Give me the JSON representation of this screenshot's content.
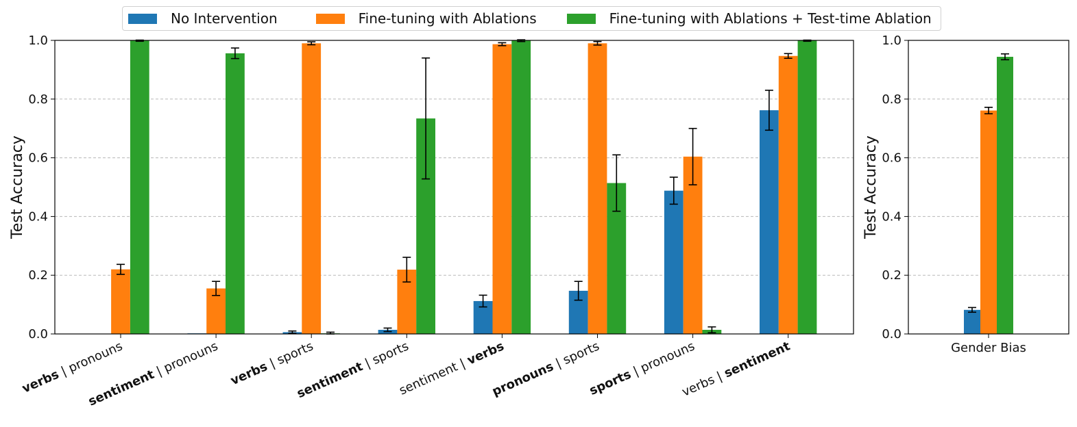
{
  "legend": {
    "items": [
      {
        "label": "No Intervention",
        "color": "#1f77b4"
      },
      {
        "label": "Fine-tuning with Ablations",
        "color": "#ff7f0e"
      },
      {
        "label": "Fine-tuning with Ablations + Test-time Ablation",
        "color": "#2ca02c"
      }
    ]
  },
  "chart_data": [
    {
      "type": "bar",
      "ylabel": "Test Accuracy",
      "ylim": [
        0,
        1.0
      ],
      "yticks": [
        "0.0",
        "0.2",
        "0.4",
        "0.6",
        "0.8",
        "1.0"
      ],
      "grid": "y-dashed",
      "categories": [
        {
          "bold": "verbs",
          "sep": " | ",
          "rest": "pronouns",
          "bold_first": true
        },
        {
          "bold": "sentiment",
          "sep": " | ",
          "rest": "pronouns",
          "bold_first": true
        },
        {
          "bold": "verbs",
          "sep": " | ",
          "rest": "sports",
          "bold_first": true
        },
        {
          "bold": "sentiment",
          "sep": " | ",
          "rest": "sports",
          "bold_first": true
        },
        {
          "bold": "verbs",
          "sep": " | ",
          "rest": "sentiment",
          "bold_first": false
        },
        {
          "bold": "pronouns",
          "sep": " | ",
          "rest": "sports",
          "bold_first": true
        },
        {
          "bold": "sports",
          "sep": " | ",
          "rest": "pronouns",
          "bold_first": true
        },
        {
          "bold": "sentiment",
          "sep": " | ",
          "rest": "verbs",
          "bold_first": false
        }
      ],
      "series": [
        {
          "name": "No Intervention",
          "values": [
            0.001,
            0.002,
            0.006,
            0.014,
            0.112,
            0.147,
            0.488,
            0.762
          ],
          "errors": [
            0.0,
            0.0,
            0.004,
            0.006,
            0.02,
            0.032,
            0.046,
            0.068
          ]
        },
        {
          "name": "Fine-tuning with Ablations",
          "values": [
            0.22,
            0.155,
            0.99,
            0.219,
            0.987,
            0.99,
            0.604,
            0.947
          ],
          "errors": [
            0.017,
            0.024,
            0.005,
            0.042,
            0.005,
            0.006,
            0.096,
            0.008
          ]
        },
        {
          "name": "Fine-tuning with Ablations + Test-time Ablation",
          "values": [
            0.999,
            0.956,
            0.002,
            0.734,
            0.999,
            0.514,
            0.014,
            0.999
          ],
          "errors": [
            0.002,
            0.018,
            0.004,
            0.206,
            0.003,
            0.096,
            0.01,
            0.002
          ]
        }
      ]
    },
    {
      "type": "bar",
      "ylabel": "Test Accuracy",
      "ylim": [
        0,
        1.0
      ],
      "yticks": [
        "0.0",
        "0.2",
        "0.4",
        "0.6",
        "0.8",
        "1.0"
      ],
      "grid": "y-dashed",
      "categories": [
        "Gender Bias"
      ],
      "series": [
        {
          "name": "No Intervention",
          "values": [
            0.082
          ],
          "errors": [
            0.008
          ]
        },
        {
          "name": "Fine-tuning with Ablations",
          "values": [
            0.761
          ],
          "errors": [
            0.011
          ]
        },
        {
          "name": "Fine-tuning with Ablations + Test-time Ablation",
          "values": [
            0.944
          ],
          "errors": [
            0.01
          ]
        }
      ]
    }
  ]
}
